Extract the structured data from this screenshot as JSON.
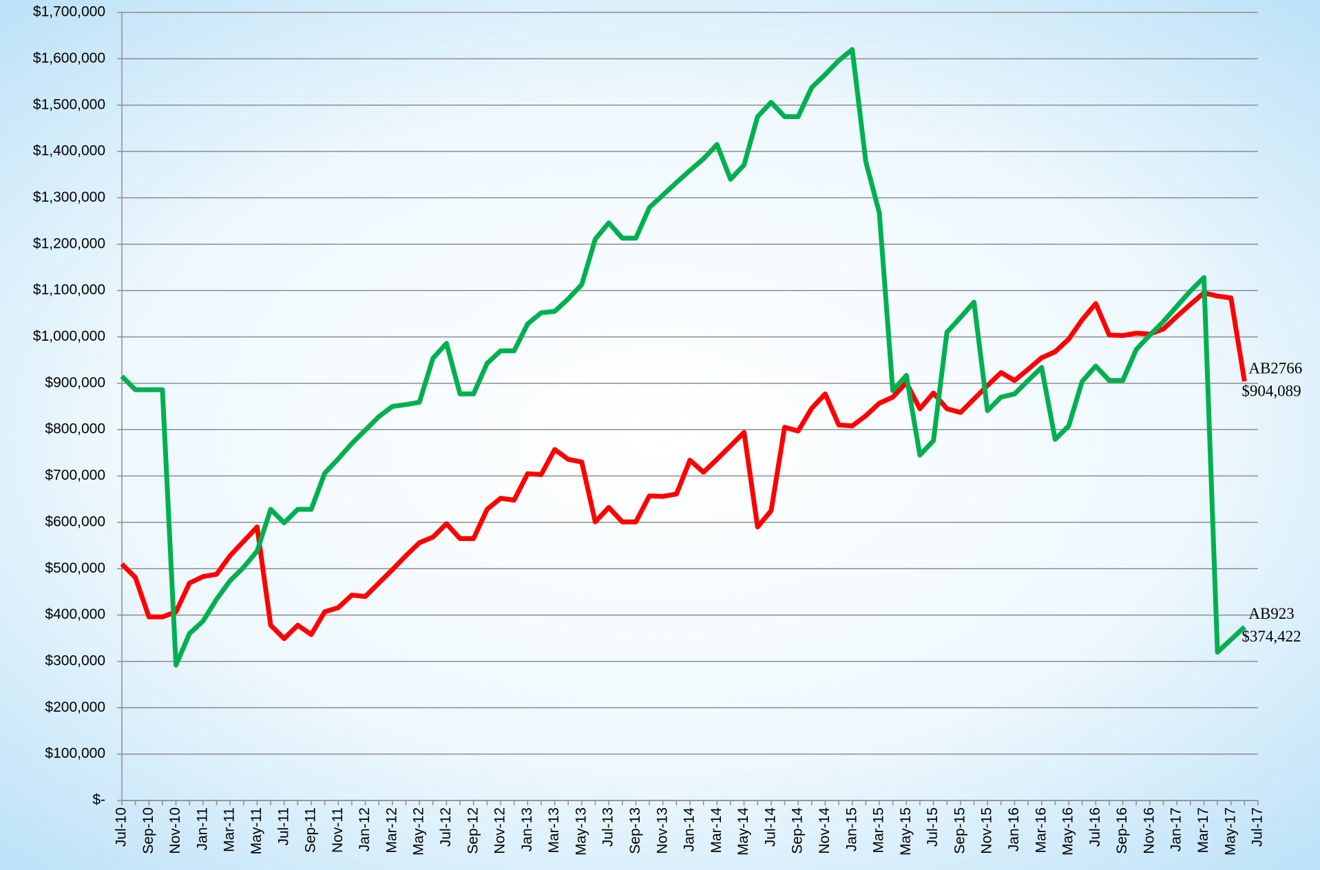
{
  "chart_data": {
    "type": "line",
    "categories": [
      "Jul-10",
      null,
      "Sep-10",
      null,
      "Nov-10",
      null,
      "Jan-11",
      null,
      "Mar-11",
      null,
      "May-11",
      null,
      "Jul-11",
      null,
      "Sep-11",
      null,
      "Nov-11",
      null,
      "Jan-12",
      null,
      "Mar-12",
      null,
      "May-12",
      null,
      "Jul-12",
      null,
      "Sep-12",
      null,
      "Nov-12",
      null,
      "Jan-13",
      null,
      "Mar-13",
      null,
      "May-13",
      null,
      "Jul-13",
      null,
      "Sep-13",
      null,
      "Nov-13",
      null,
      "Jan-14",
      null,
      "Mar-14",
      null,
      "May-14",
      null,
      "Jul-14",
      null,
      "Sep-14",
      null,
      "Nov-14",
      null,
      "Jan-15",
      null,
      "Mar-15",
      null,
      "May-15",
      null,
      "Jul-15",
      null,
      "Sep-15",
      null,
      "Nov-15",
      null,
      "Jan-16",
      null,
      "Mar-16",
      null,
      "May-16",
      null,
      "Jul-16",
      null,
      "Sep-16",
      null,
      "Nov-16",
      null,
      "Jan-17",
      null,
      "Mar-17",
      null,
      "May-17",
      null,
      "Jul-17"
    ],
    "series": [
      {
        "name": "AB2766",
        "color": "#ff0000",
        "values": [
          510000,
          481000,
          396000,
          396000,
          407000,
          469000,
          483000,
          488000,
          528000,
          559000,
          590000,
          378000,
          349000,
          378000,
          358000,
          407000,
          416000,
          443000,
          440000,
          469000,
          498000,
          528000,
          556000,
          568000,
          597000,
          565000,
          565000,
          628000,
          652000,
          648000,
          705000,
          703000,
          757000,
          736000,
          730000,
          601000,
          632000,
          601000,
          601000,
          657000,
          656000,
          661000,
          734000,
          708000,
          736000,
          765000,
          794000,
          590000,
          625000,
          805000,
          797000,
          846000,
          877000,
          810000,
          808000,
          830000,
          857000,
          870000,
          901000,
          845000,
          879000,
          845000,
          837000,
          866000,
          895000,
          923000,
          906000,
          930000,
          955000,
          968000,
          995000,
          1037000,
          1072000,
          1004000,
          1003000,
          1008000,
          1006000,
          1017000,
          1044000,
          1070000,
          1095000,
          1088000,
          1084000,
          904089,
          null
        ],
        "value_labels": [
          null,
          null,
          null,
          null,
          null,
          null,
          null,
          null,
          null,
          null,
          null,
          null,
          null,
          null,
          null,
          null,
          null,
          null,
          null,
          null,
          null,
          null,
          null,
          null,
          null,
          null,
          null,
          null,
          null,
          null,
          null,
          null,
          null,
          null,
          null,
          null,
          null,
          null,
          null,
          null,
          null,
          null,
          null,
          null,
          null,
          null,
          null,
          null,
          null,
          null,
          null,
          null,
          null,
          null,
          null,
          null,
          null,
          null,
          null,
          null,
          null,
          null,
          null,
          null,
          null,
          null,
          null,
          null,
          null,
          null,
          null,
          null,
          null,
          null,
          null,
          null,
          null,
          null,
          null,
          null,
          null,
          null,
          null,
          "$904,089",
          null
        ]
      },
      {
        "name": "AB923",
        "color": "#00b050",
        "values": [
          915000,
          886000,
          886000,
          886000,
          292000,
          360000,
          387000,
          434000,
          474000,
          503000,
          538000,
          628000,
          599000,
          628000,
          628000,
          706000,
          737000,
          770000,
          799000,
          828000,
          850000,
          854000,
          859000,
          954000,
          986000,
          877000,
          877000,
          943000,
          970000,
          970000,
          1028000,
          1052000,
          1055000,
          1082000,
          1113000,
          1211000,
          1246000,
          1213000,
          1213000,
          1279000,
          1306000,
          1333000,
          1359000,
          1384000,
          1415000,
          1340000,
          1371000,
          1475000,
          1506000,
          1475000,
          1475000,
          1538000,
          1566000,
          1596000,
          1620000,
          1378000,
          1268000,
          884000,
          917000,
          745000,
          776000,
          1010000,
          1042000,
          1075000,
          841000,
          870000,
          877000,
          906000,
          934000,
          779000,
          808000,
          904000,
          937000,
          906000,
          906000,
          973000,
          1004000,
          1033000,
          1066000,
          1099000,
          1128000,
          320000,
          347000,
          374422,
          null
        ],
        "value_labels": [
          null,
          null,
          null,
          null,
          null,
          null,
          null,
          null,
          null,
          null,
          null,
          null,
          null,
          null,
          null,
          null,
          null,
          null,
          null,
          null,
          null,
          null,
          null,
          null,
          null,
          null,
          null,
          null,
          null,
          null,
          null,
          null,
          null,
          null,
          null,
          null,
          null,
          null,
          null,
          null,
          null,
          null,
          null,
          null,
          null,
          null,
          null,
          null,
          null,
          null,
          null,
          null,
          null,
          null,
          null,
          null,
          null,
          null,
          null,
          null,
          null,
          null,
          null,
          null,
          null,
          null,
          null,
          null,
          null,
          null,
          null,
          null,
          null,
          null,
          null,
          null,
          null,
          null,
          null,
          null,
          null,
          null,
          null,
          "$374,422",
          null
        ]
      }
    ],
    "ylim": [
      0,
      1700000
    ],
    "yticks": [
      {
        "value": 0,
        "label": "$-"
      },
      {
        "value": 100000,
        "label": "$100,000"
      },
      {
        "value": 200000,
        "label": "$200,000"
      },
      {
        "value": 300000,
        "label": "$300,000"
      },
      {
        "value": 400000,
        "label": "$400,000"
      },
      {
        "value": 500000,
        "label": "$500,000"
      },
      {
        "value": 600000,
        "label": "$600,000"
      },
      {
        "value": 700000,
        "label": "$700,000"
      },
      {
        "value": 800000,
        "label": "$800,000"
      },
      {
        "value": 900000,
        "label": "$900,000"
      },
      {
        "value": 1000000,
        "label": "$1,000,000"
      },
      {
        "value": 1100000,
        "label": "$1,100,000"
      },
      {
        "value": 1200000,
        "label": "$1,200,000"
      },
      {
        "value": 1300000,
        "label": "$1,300,000"
      },
      {
        "value": 1400000,
        "label": "$1,400,000"
      },
      {
        "value": 1500000,
        "label": "$1,500,000"
      },
      {
        "value": 1600000,
        "label": "$1,600,000"
      },
      {
        "value": 1700000,
        "label": "$1,700,000"
      }
    ],
    "grid": true
  }
}
